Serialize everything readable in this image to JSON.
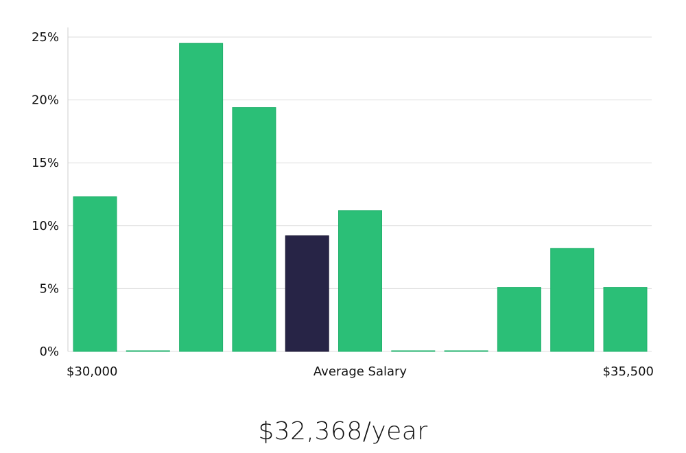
{
  "chart_data": {
    "type": "bar",
    "categories": [
      "1",
      "2",
      "3",
      "4",
      "5",
      "6",
      "7",
      "8",
      "9",
      "10",
      "11"
    ],
    "values": [
      12.3,
      0,
      24.5,
      19.4,
      9.2,
      11.2,
      0,
      0,
      5.1,
      8.2,
      5.1
    ],
    "highlight_index": 4,
    "ylim": [
      0,
      25
    ],
    "y_ticks": [
      0,
      5,
      10,
      15,
      20,
      25
    ],
    "y_tick_suffix": "%",
    "x_labels": {
      "left": "$30,000",
      "center": "Average Salary",
      "right": "$35,500"
    },
    "grid": true,
    "colors": {
      "bar": "#2bbf77",
      "bar_stroke": "#22b06c",
      "highlight": "#272446",
      "grid": "#dddddd",
      "axis": "#cccccc"
    }
  },
  "salary": {
    "readout": "$32,368/year"
  }
}
